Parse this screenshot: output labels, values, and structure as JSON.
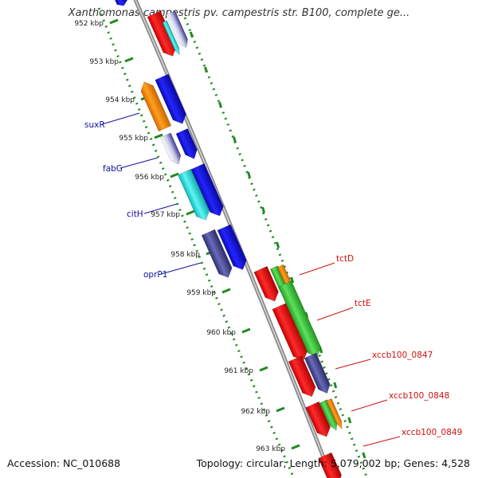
{
  "title": "Xanthomonas campestris pv. campestris str. B100, complete ge...",
  "footer": {
    "accession": "Accession: NC_010688",
    "topology": "Topology: circular; Length: 5,079,002 bp; Genes: 4,528"
  },
  "colors": {
    "backbone": "#8a8a8a",
    "ruler_ticks": "#1f8a1f",
    "left_labels": "#1010a0",
    "right_labels": "#d01010",
    "gene_red": "#ff1a1a",
    "gene_blue": "#1414e6",
    "gene_orange": "#ff8c00",
    "gene_cyan": "#19e6e6",
    "gene_green": "#3ccc3c",
    "gene_slate": "#4a4a9a"
  },
  "ruler": {
    "unit": "kbp",
    "ticks": [
      "952 kbp",
      "953 kbp",
      "954 kbp",
      "955 kbp",
      "956 kbp",
      "957 kbp",
      "958 kbp",
      "959 kbp",
      "960 kbp",
      "961 kbp",
      "962 kbp",
      "963 kbp"
    ]
  },
  "gene_labels": {
    "left": [
      "suxR",
      "fabG",
      "citH",
      "oprP1"
    ],
    "right": [
      "tctD",
      "tctE",
      "xccb100_0847",
      "xccb100_0848",
      "xccb100_0849"
    ]
  }
}
